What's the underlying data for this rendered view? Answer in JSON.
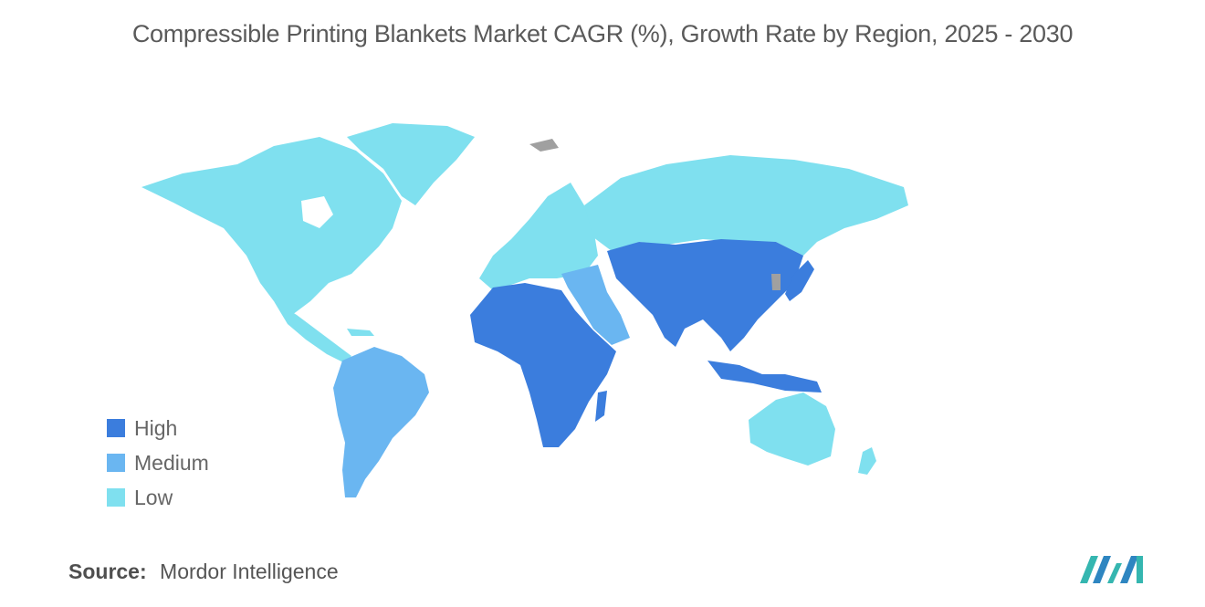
{
  "title": "Compressible Printing Blankets Market CAGR (%), Growth Rate by Region, 2025 - 2030",
  "legend": [
    {
      "label": "High",
      "color": "#3b7ddd"
    },
    {
      "label": "Medium",
      "color": "#6ab6f1"
    },
    {
      "label": "Low",
      "color": "#7fe0ef"
    }
  ],
  "no_data_color": "#a0a0a0",
  "regions": [
    {
      "name": "North America",
      "level": "Low"
    },
    {
      "name": "Greenland",
      "level": "Low"
    },
    {
      "name": "Central America",
      "level": "Low"
    },
    {
      "name": "South America",
      "level": "Medium"
    },
    {
      "name": "Europe",
      "level": "Low"
    },
    {
      "name": "Russia",
      "level": "Low"
    },
    {
      "name": "Middle East",
      "level": "Medium"
    },
    {
      "name": "Africa",
      "level": "High"
    },
    {
      "name": "Asia",
      "level": "High"
    },
    {
      "name": "Australia",
      "level": "Low"
    },
    {
      "name": "New Zealand",
      "level": "Low"
    }
  ],
  "source": {
    "label": "Source:",
    "text": "Mordor Intelligence"
  }
}
